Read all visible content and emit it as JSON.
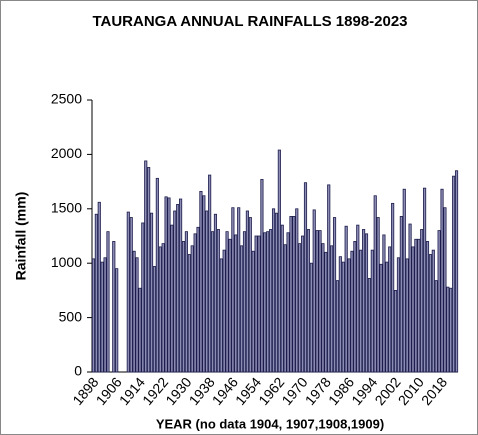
{
  "chart_data": {
    "type": "bar",
    "title": "TAURANGA ANNUAL RAINFALLS 1898-2023",
    "y_label": "Rainfall (mm)",
    "x_label": "YEAR (no data 1904, 1907,1908,1909)",
    "categories": [
      "1898",
      null,
      null,
      null,
      null,
      null,
      null,
      null,
      "1906",
      null,
      null,
      null,
      null,
      null,
      null,
      null,
      "1914",
      null,
      null,
      null,
      null,
      null,
      null,
      null,
      "1922",
      null,
      null,
      null,
      null,
      null,
      null,
      null,
      "1930",
      null,
      null,
      null,
      null,
      null,
      null,
      null,
      "1938",
      null,
      null,
      null,
      null,
      null,
      null,
      null,
      "1946",
      null,
      null,
      null,
      null,
      null,
      null,
      null,
      "1954",
      null,
      null,
      null,
      null,
      null,
      null,
      null,
      "1962",
      null,
      null,
      null,
      null,
      null,
      null,
      null,
      "1970",
      null,
      null,
      null,
      null,
      null,
      null,
      null,
      "1978",
      null,
      null,
      null,
      null,
      null,
      null,
      null,
      "1986",
      null,
      null,
      null,
      null,
      null,
      null,
      null,
      "1994",
      null,
      null,
      null,
      null,
      null,
      null,
      null,
      "2002",
      null,
      null,
      null,
      null,
      null,
      null,
      null,
      "2010",
      null,
      null,
      null,
      null,
      null,
      null,
      null,
      "2018",
      null,
      null,
      null,
      null,
      null
    ],
    "values": [
      1040,
      1450,
      1560,
      1010,
      1050,
      1290,
      null,
      1200,
      950,
      null,
      null,
      null,
      1470,
      1420,
      1110,
      1050,
      770,
      1370,
      1940,
      1880,
      1460,
      970,
      1780,
      1150,
      1180,
      1610,
      1600,
      1350,
      1480,
      1540,
      1590,
      1200,
      1290,
      1080,
      1160,
      1270,
      1330,
      1660,
      1620,
      1480,
      1810,
      1290,
      1450,
      1310,
      1040,
      1120,
      1290,
      1220,
      1510,
      1260,
      1510,
      1160,
      1290,
      1480,
      1420,
      1110,
      1250,
      1250,
      1770,
      1280,
      1290,
      1310,
      1500,
      1460,
      2040,
      1350,
      1170,
      1280,
      1430,
      1430,
      1500,
      1180,
      1250,
      1740,
      1310,
      1000,
      1490,
      1300,
      1300,
      1180,
      1100,
      1720,
      1160,
      1420,
      840,
      1060,
      1010,
      1340,
      1040,
      1110,
      1200,
      1350,
      1120,
      1310,
      1270,
      860,
      1120,
      1620,
      1420,
      990,
      1260,
      1010,
      1150,
      1550,
      750,
      1050,
      1430,
      1680,
      1040,
      1360,
      1150,
      1220,
      1220,
      1310,
      1690,
      1200,
      1080,
      1120,
      840,
      1300,
      1680,
      1510,
      780,
      770,
      1800,
      1850
    ],
    "color": "#8c8cb4",
    "ylim": [
      0,
      2500
    ],
    "yticks": [
      0,
      500,
      1000,
      1500,
      2000,
      2500
    ],
    "grid": false
  }
}
